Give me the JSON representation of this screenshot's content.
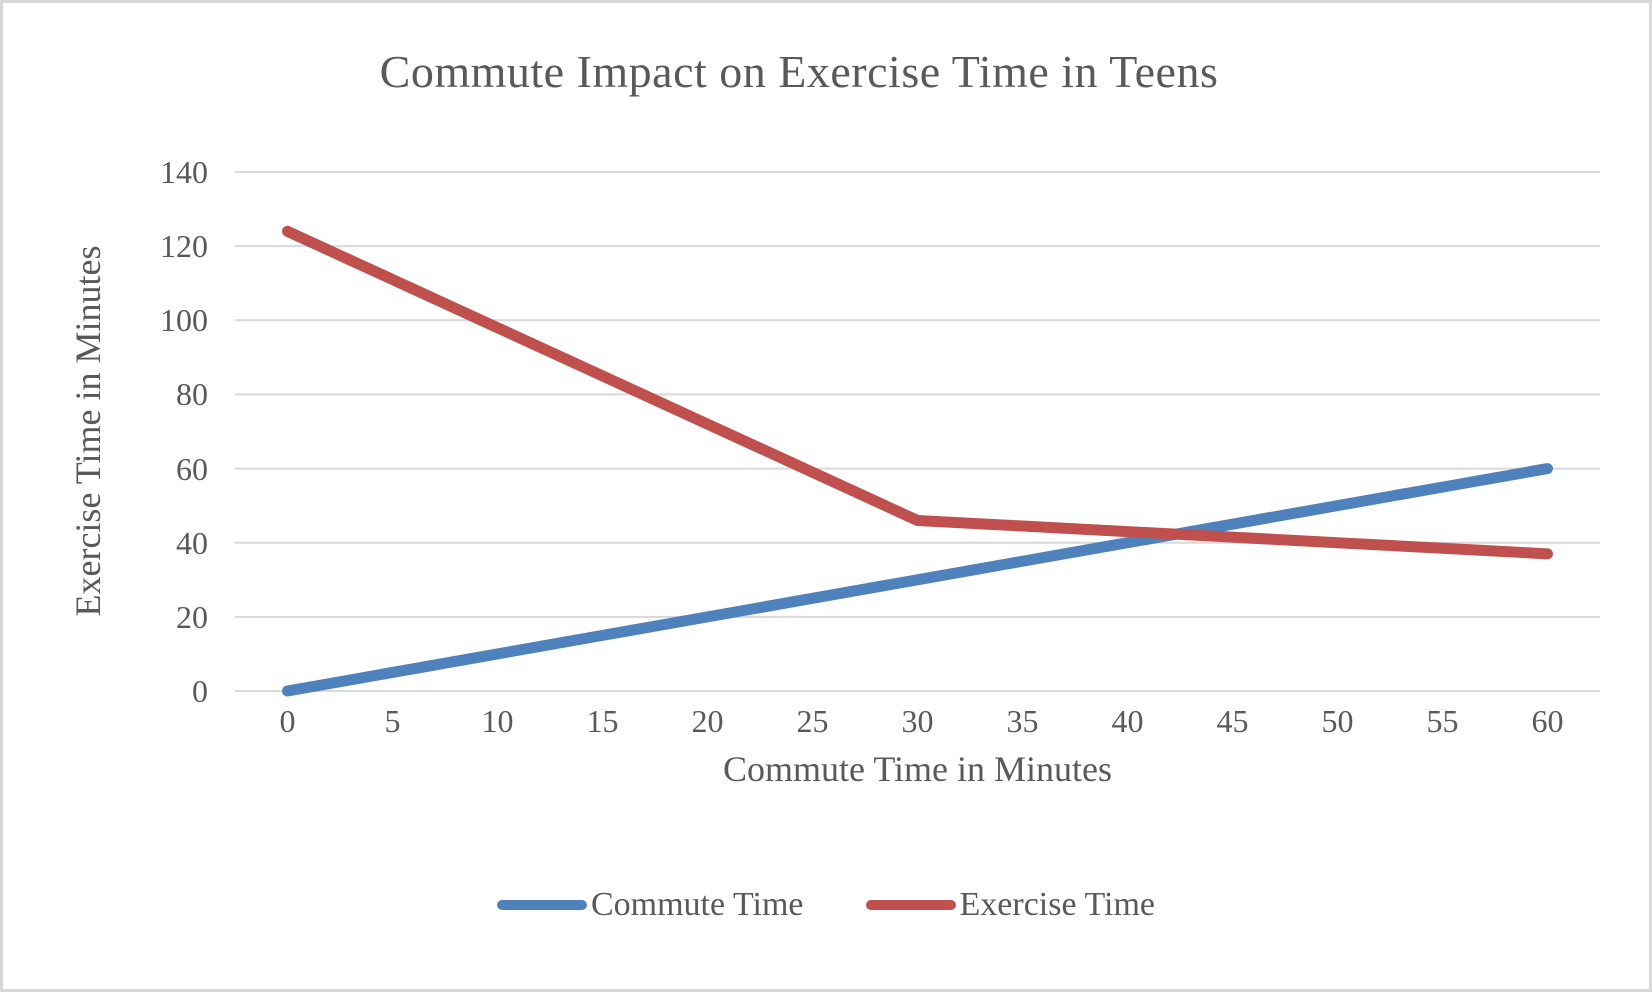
{
  "chart": {
    "title": "Commute Impact on Exercise Time in Teens",
    "xlabel": "Commute Time in Minutes",
    "ylabel": "Exercise Time in Minutes"
  },
  "chart_data": {
    "type": "line",
    "title": "Commute Impact on Exercise Time in Teens",
    "xlabel": "Commute Time in Minutes",
    "ylabel": "Exercise Time in Minutes",
    "categories": [
      0,
      5,
      10,
      15,
      20,
      25,
      30,
      35,
      40,
      45,
      50,
      55,
      60
    ],
    "series": [
      {
        "name": "Commute Time",
        "color": "#4F81BD",
        "values": [
          0,
          5,
          10,
          15,
          20,
          25,
          30,
          35,
          40,
          45,
          50,
          55,
          60
        ]
      },
      {
        "name": "Exercise Time",
        "color": "#C0504D",
        "values": [
          124,
          111,
          98,
          85,
          72,
          59,
          46,
          44.5,
          43,
          41.5,
          40,
          38.5,
          37
        ]
      }
    ],
    "ylim": [
      0,
      140
    ],
    "y_ticks": [
      0,
      20,
      40,
      60,
      80,
      100,
      120,
      140
    ],
    "grid": "horizontal",
    "gridline_color": "#D9D9D9",
    "legend_position": "bottom",
    "text_color": "#595959"
  }
}
